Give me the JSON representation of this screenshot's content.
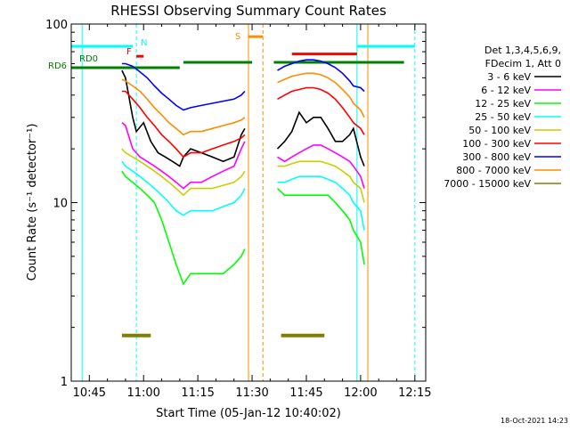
{
  "chart_data": {
    "type": "line",
    "title": "RHESSI Observing Summary Count Rates",
    "xlabel": "Start Time (05-Jan-12 10:40:02)",
    "ylabel": "Count Rate (s⁻¹ detector⁻¹)",
    "y_scale": "log",
    "ylim": [
      1,
      100
    ],
    "xlim": [
      "10:40",
      "12:18"
    ],
    "x_ticks": [
      "10:45",
      "11:00",
      "11:15",
      "11:30",
      "11:45",
      "12:00",
      "12:15"
    ],
    "y_ticks": [
      "1",
      "10",
      "100"
    ],
    "legend_header": [
      "Det 1,3,4,5,6,9,",
      "FDecim 1, Att 0"
    ],
    "series": [
      {
        "name": "3 - 6 keV",
        "color": "#000000",
        "x": [
          "10:54",
          "10:55",
          "10:57",
          "10:58",
          "11:00",
          "11:02",
          "11:04",
          "11:06",
          "11:08",
          "11:10",
          "11:11",
          "11:13",
          "11:16",
          "11:19",
          "11:22",
          "11:25",
          "11:27",
          "11:28",
          "11:37",
          "11:39",
          "11:41",
          "11:43",
          "11:45",
          "11:47",
          "11:49",
          "11:51",
          "11:53",
          "11:55",
          "11:57",
          "11:58",
          "12:00",
          "12:01"
        ],
        "y": [
          55,
          50,
          30,
          25,
          28,
          22,
          19,
          18,
          17,
          16,
          18,
          20,
          19,
          18,
          17,
          18,
          24,
          26,
          20,
          22,
          25,
          32,
          28,
          30,
          30,
          26,
          22,
          22,
          24,
          26,
          18,
          16
        ]
      },
      {
        "name": "6 - 12 keV",
        "color": "#ff00ff",
        "x": [
          "10:54",
          "10:55",
          "10:57",
          "10:59",
          "11:01",
          "11:03",
          "11:05",
          "11:07",
          "11:09",
          "11:11",
          "11:13",
          "11:16",
          "11:19",
          "11:22",
          "11:25",
          "11:27",
          "11:28",
          "11:37",
          "11:39",
          "11:41",
          "11:43",
          "11:45",
          "11:47",
          "11:49",
          "11:51",
          "11:53",
          "11:55",
          "11:57",
          "11:58",
          "12:00",
          "12:01"
        ],
        "y": [
          28,
          27,
          20,
          18,
          17,
          16,
          15,
          14,
          13,
          12,
          13,
          13,
          14,
          15,
          16,
          20,
          22,
          18,
          17,
          18,
          19,
          20,
          21,
          21,
          20,
          19,
          18,
          17,
          16,
          14,
          12
        ]
      },
      {
        "name": "12 - 25 keV",
        "color": "#00ff00",
        "x": [
          "10:54",
          "10:55",
          "10:57",
          "10:59",
          "11:01",
          "11:03",
          "11:05",
          "11:07",
          "11:09",
          "11:11",
          "11:13",
          "11:16",
          "11:19",
          "11:22",
          "11:25",
          "11:27",
          "11:28",
          "11:37",
          "11:39",
          "11:41",
          "11:43",
          "11:45",
          "11:47",
          "11:49",
          "11:51",
          "11:53",
          "11:55",
          "11:57",
          "11:58",
          "12:00",
          "12:01"
        ],
        "y": [
          15,
          14,
          13,
          12,
          11,
          10,
          8,
          6,
          4.5,
          3.5,
          4,
          4,
          4,
          4,
          4.5,
          5,
          5.5,
          12,
          11,
          11,
          11,
          11,
          11,
          11,
          11,
          10,
          9,
          8,
          7,
          6,
          4.5
        ]
      },
      {
        "name": "25 - 50 keV",
        "color": "#00ffff",
        "x": [
          "10:54",
          "10:55",
          "10:57",
          "10:59",
          "11:01",
          "11:03",
          "11:05",
          "11:07",
          "11:09",
          "11:11",
          "11:13",
          "11:16",
          "11:19",
          "11:22",
          "11:25",
          "11:27",
          "11:28",
          "11:37",
          "11:39",
          "11:41",
          "11:43",
          "11:45",
          "11:47",
          "11:49",
          "11:51",
          "11:53",
          "11:55",
          "11:57",
          "11:58",
          "12:00",
          "12:01"
        ],
        "y": [
          17,
          16,
          15,
          14,
          13,
          12,
          11,
          10,
          9,
          8.5,
          9,
          9,
          9,
          9.5,
          10,
          11,
          12,
          13,
          13,
          13.5,
          14,
          14,
          14,
          14,
          13.5,
          13,
          12,
          11,
          10,
          9,
          7
        ]
      },
      {
        "name": "50 - 100 keV",
        "color": "#cccc00",
        "x": [
          "10:54",
          "10:55",
          "10:57",
          "10:59",
          "11:01",
          "11:03",
          "11:05",
          "11:07",
          "11:09",
          "11:11",
          "11:13",
          "11:16",
          "11:19",
          "11:22",
          "11:25",
          "11:27",
          "11:28",
          "11:37",
          "11:39",
          "11:41",
          "11:43",
          "11:45",
          "11:47",
          "11:49",
          "11:51",
          "11:53",
          "11:55",
          "11:57",
          "11:58",
          "12:00",
          "12:01"
        ],
        "y": [
          20,
          19,
          18,
          17,
          16,
          15,
          14,
          13,
          12,
          11,
          12,
          12,
          12,
          12.5,
          13,
          14,
          15,
          16,
          16,
          16.5,
          17,
          17,
          17,
          17,
          16.5,
          16,
          15,
          14,
          13,
          12,
          10
        ]
      },
      {
        "name": "100 - 300 keV",
        "color": "#ff0000",
        "x": [
          "10:54",
          "10:55",
          "10:57",
          "10:59",
          "11:01",
          "11:03",
          "11:05",
          "11:07",
          "11:09",
          "11:11",
          "11:13",
          "11:16",
          "11:19",
          "11:22",
          "11:25",
          "11:27",
          "11:28",
          "11:37",
          "11:39",
          "11:41",
          "11:43",
          "11:45",
          "11:47",
          "11:49",
          "11:51",
          "11:53",
          "11:55",
          "11:57",
          "11:58",
          "12:00",
          "12:01"
        ],
        "y": [
          42,
          42,
          38,
          34,
          30,
          27,
          24,
          22,
          20,
          18,
          19,
          19,
          20,
          21,
          22,
          23,
          24,
          38,
          40,
          42,
          43,
          44,
          44,
          43,
          41,
          38,
          34,
          30,
          28,
          26,
          24
        ]
      },
      {
        "name": "300 - 800 keV",
        "color": "#0000ff",
        "x": [
          "10:54",
          "10:55",
          "10:57",
          "10:59",
          "11:01",
          "11:03",
          "11:05",
          "11:07",
          "11:09",
          "11:11",
          "11:13",
          "11:16",
          "11:19",
          "11:22",
          "11:25",
          "11:27",
          "11:28",
          "11:37",
          "11:39",
          "11:41",
          "11:43",
          "11:45",
          "11:47",
          "11:49",
          "11:51",
          "11:53",
          "11:55",
          "11:57",
          "11:58",
          "12:00",
          "12:01"
        ],
        "y": [
          60,
          60,
          58,
          54,
          50,
          45,
          41,
          38,
          35,
          33,
          34,
          35,
          36,
          37,
          38,
          40,
          42,
          55,
          58,
          60,
          62,
          63,
          63,
          62,
          60,
          57,
          53,
          48,
          45,
          44,
          42
        ]
      },
      {
        "name": "800 - 7000 keV",
        "color": "#ff8c00",
        "x": [
          "10:54",
          "10:55",
          "10:57",
          "10:59",
          "11:01",
          "11:03",
          "11:05",
          "11:07",
          "11:09",
          "11:11",
          "11:13",
          "11:16",
          "11:19",
          "11:22",
          "11:25",
          "11:27",
          "11:28",
          "11:37",
          "11:39",
          "11:41",
          "11:43",
          "11:45",
          "11:47",
          "11:49",
          "11:51",
          "11:53",
          "11:55",
          "11:57",
          "11:58",
          "12:00",
          "12:01"
        ],
        "y": [
          49,
          48,
          45,
          42,
          38,
          34,
          31,
          28,
          26,
          24,
          25,
          25,
          26,
          27,
          28,
          29,
          30,
          47,
          49,
          51,
          52,
          53,
          53,
          52,
          50,
          47,
          43,
          39,
          36,
          33,
          30
        ]
      },
      {
        "name": "7000 - 15000 keV",
        "color": "#808000",
        "x": [
          "10:54",
          "10:56",
          "10:58",
          "11:00",
          "11:02",
          "11:38",
          "11:40",
          "11:42",
          "11:44",
          "11:46",
          "11:48",
          "11:50"
        ],
        "y": [
          1.8,
          1.8,
          1.8,
          1.8,
          1.8,
          1.8,
          1.8,
          1.8,
          1.8,
          1.8,
          1.8,
          1.8
        ]
      }
    ],
    "annotations": [
      {
        "text": "RD0",
        "color": "#008000"
      },
      {
        "text": "RD6",
        "color": "#008000"
      },
      {
        "text": "N",
        "color": "#00ffff"
      },
      {
        "text": "F",
        "color": "#ff0000"
      },
      {
        "text": "S",
        "color": "#ff8c00"
      }
    ],
    "timestamp": "18-Oct-2021 14:23"
  }
}
